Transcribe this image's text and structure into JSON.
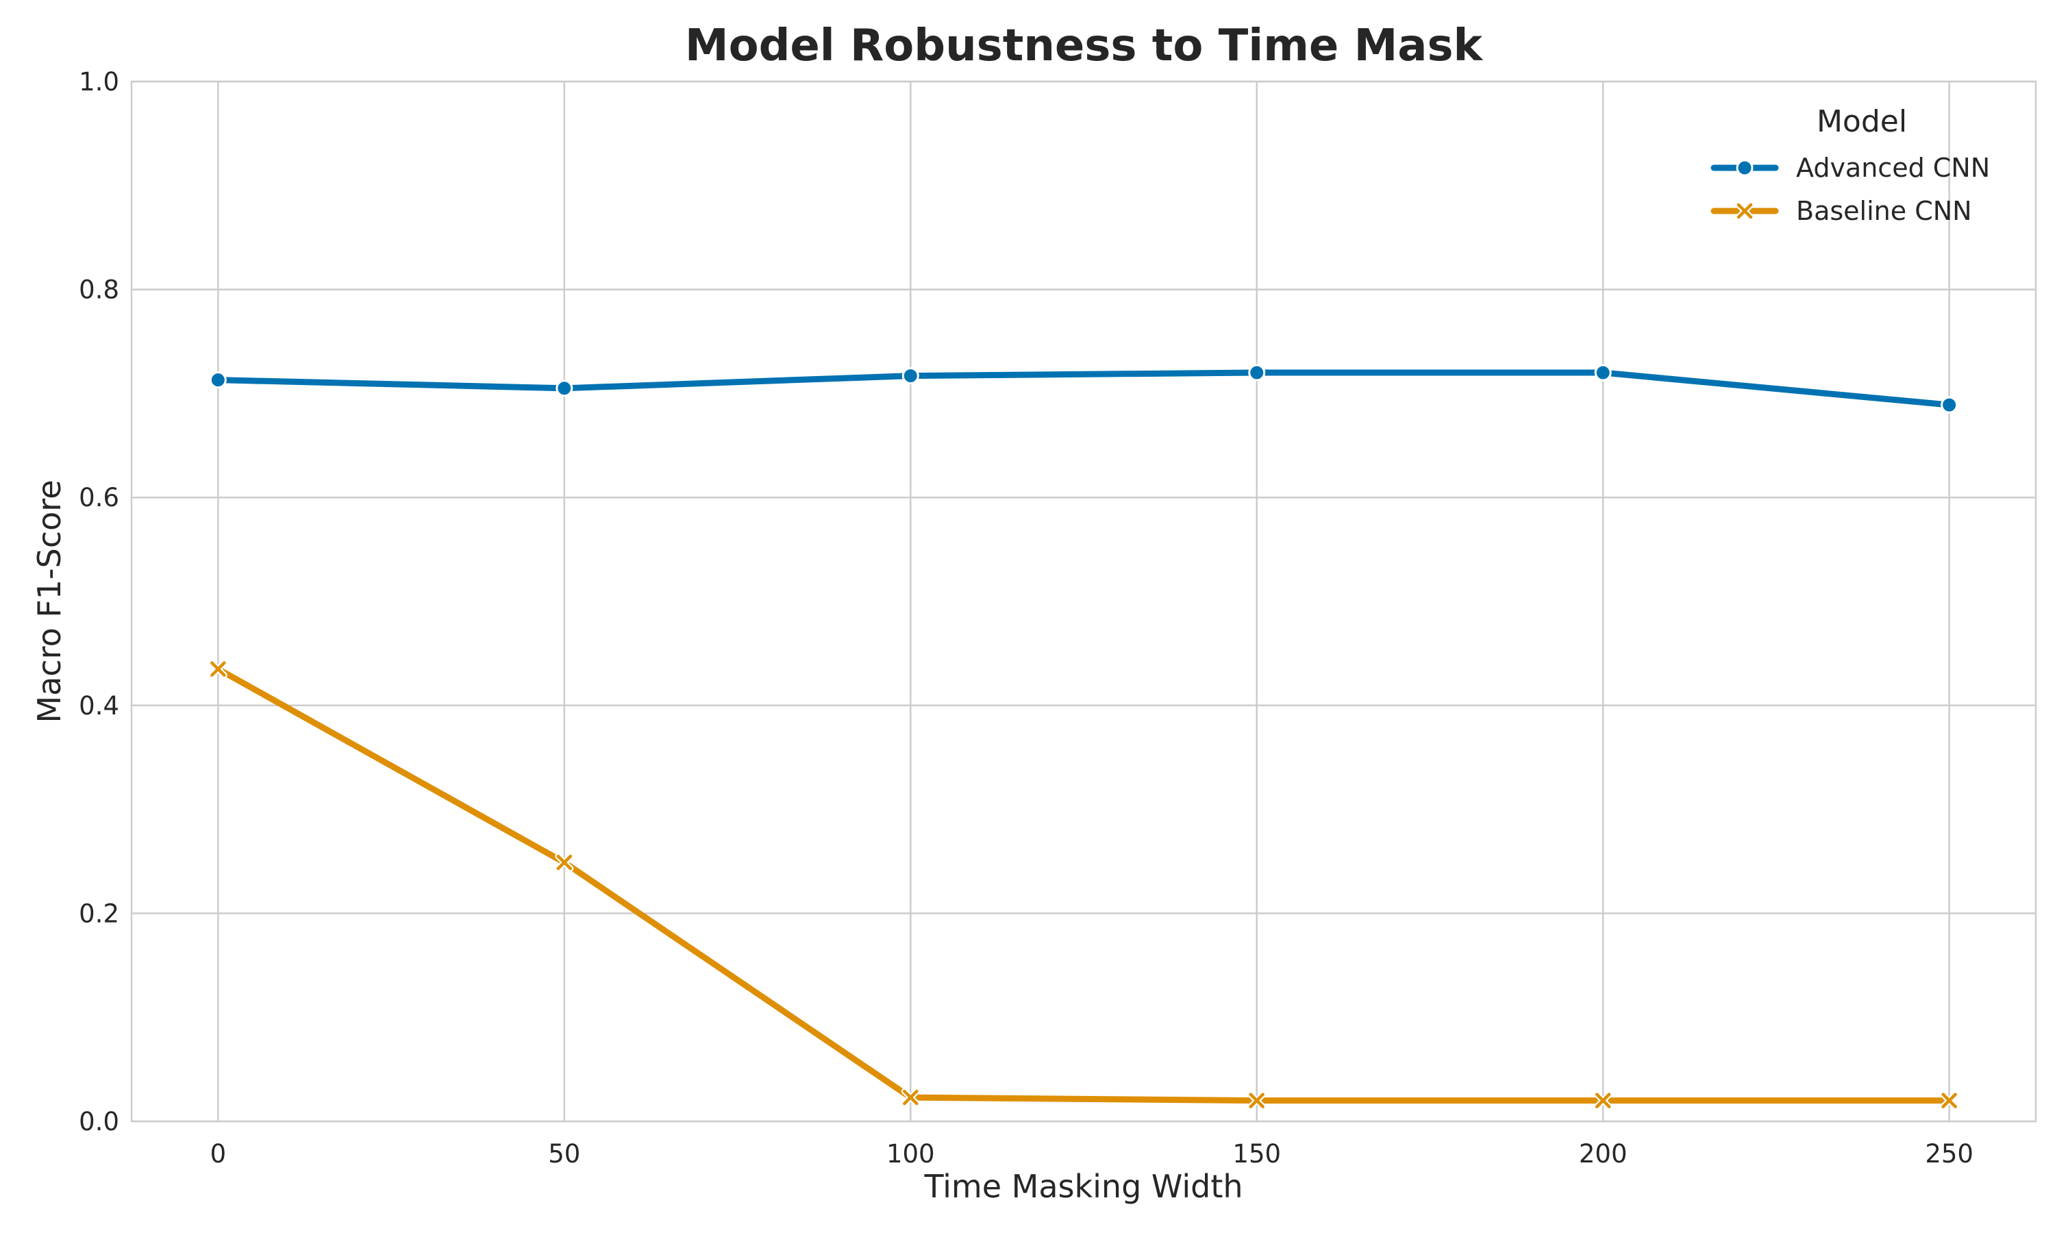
{
  "chart_data": {
    "type": "line",
    "title": "Model Robustness to Time Mask",
    "xlabel": "Time Masking Width",
    "ylabel": "Macro F1-Score",
    "x": [
      0,
      50,
      100,
      150,
      200,
      250
    ],
    "xlim": [
      -12.5,
      262.5
    ],
    "ylim": [
      0,
      1.0
    ],
    "xticks": [
      0,
      50,
      100,
      150,
      200,
      250
    ],
    "yticks": [
      0.0,
      0.2,
      0.4,
      0.6,
      0.8,
      1.0
    ],
    "xtick_labels": [
      "0",
      "50",
      "100",
      "150",
      "200",
      "250"
    ],
    "ytick_labels": [
      "0.0",
      "0.2",
      "0.4",
      "0.6",
      "0.8",
      "1.0"
    ],
    "grid": true,
    "legend": {
      "title": "Model",
      "placement": "top-right"
    },
    "series": [
      {
        "name": "Advanced CNN",
        "color": "#0072b2",
        "marker": "circle",
        "values": [
          0.713,
          0.705,
          0.717,
          0.72,
          0.72,
          0.689
        ]
      },
      {
        "name": "Baseline CNN",
        "color": "#de8f05",
        "marker": "x",
        "values": [
          0.435,
          0.249,
          0.023,
          0.02,
          0.02,
          0.02
        ]
      }
    ]
  }
}
